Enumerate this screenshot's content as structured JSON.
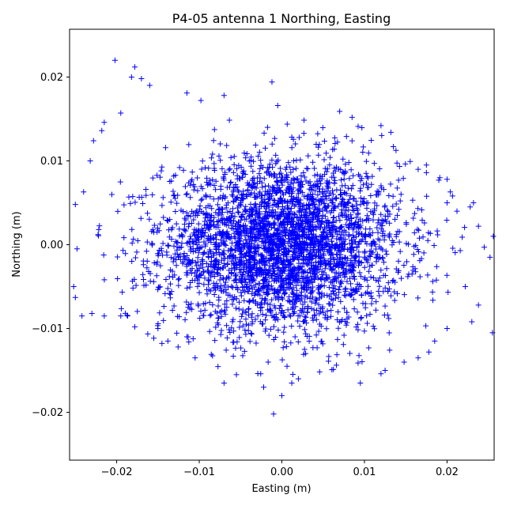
{
  "chart_data": {
    "type": "scatter",
    "title": "P4-05 antenna 1 Northing, Easting",
    "xlabel": "Easting (m)",
    "ylabel": "Northing (m)",
    "xlim": [
      -0.0257,
      0.0257
    ],
    "ylim": [
      -0.0257,
      0.0257
    ],
    "xticks": [
      -0.02,
      -0.01,
      0.0,
      0.01,
      0.02
    ],
    "yticks": [
      -0.02,
      -0.01,
      0.0,
      0.01,
      0.02
    ],
    "xtick_labels": [
      "−0.02",
      "−0.01",
      "0.00",
      "0.01",
      "0.02"
    ],
    "ytick_labels": [
      "−0.02",
      "−0.01",
      "0.00",
      "0.01",
      "0.02"
    ],
    "marker": "+",
    "color": "#0000ff",
    "grid": false,
    "series": [
      {
        "points": [
          [
            -0.0202,
            0.022
          ],
          [
            -0.0178,
            0.0212
          ],
          [
            -0.0182,
            0.02
          ],
          [
            -0.017,
            0.0198
          ],
          [
            -0.016,
            0.019
          ],
          [
            -0.0012,
            0.0194
          ],
          [
            -0.0098,
            0.0172
          ],
          [
            -0.0115,
            0.0181
          ],
          [
            -0.007,
            0.0178
          ],
          [
            -0.0005,
            0.0166
          ],
          [
            -0.0195,
            0.0157
          ],
          [
            -0.0215,
            0.0146
          ],
          [
            -0.0218,
            0.0136
          ],
          [
            -0.0228,
            0.0124
          ],
          [
            -0.0232,
            0.01
          ],
          [
            0.007,
            0.0159
          ],
          [
            0.0085,
            0.0152
          ],
          [
            0.012,
            0.0142
          ],
          [
            0.0132,
            0.0134
          ],
          [
            0.0135,
            0.0117
          ],
          [
            0.0165,
            0.009
          ],
          [
            0.0175,
            0.0086
          ],
          [
            0.019,
            0.0077
          ],
          [
            0.02,
            0.005
          ],
          [
            0.0212,
            0.004
          ],
          [
            0.0228,
            0.0045
          ],
          [
            0.0232,
            0.005
          ],
          [
            0.0238,
            0.0022
          ],
          [
            0.0245,
            -0.0003
          ],
          [
            0.0252,
            -0.0015
          ],
          [
            0.0256,
            0.001
          ],
          [
            0.0238,
            -0.0072
          ],
          [
            0.023,
            -0.0092
          ],
          [
            0.0255,
            -0.0105
          ],
          [
            0.0222,
            -0.005
          ],
          [
            -0.024,
            0.0063
          ],
          [
            -0.025,
            0.0048
          ],
          [
            -0.0248,
            -0.0005
          ],
          [
            -0.0252,
            -0.005
          ],
          [
            -0.0242,
            -0.0085
          ],
          [
            -0.023,
            -0.0082
          ],
          [
            -0.0215,
            -0.0085
          ],
          [
            -0.025,
            -0.0063
          ],
          [
            -0.0195,
            -0.0085
          ],
          [
            -0.0178,
            -0.0098
          ],
          [
            -0.001,
            -0.0202
          ],
          [
            0.0,
            -0.018
          ],
          [
            -0.0022,
            -0.017
          ],
          [
            0.0012,
            -0.0165
          ],
          [
            0.002,
            -0.016
          ],
          [
            -0.007,
            -0.0165
          ],
          [
            -0.0055,
            -0.0155
          ],
          [
            0.0095,
            -0.0165
          ],
          [
            0.012,
            -0.0154
          ],
          [
            0.0125,
            -0.015
          ],
          [
            0.0165,
            -0.0135
          ],
          [
            0.0178,
            -0.0128
          ],
          [
            0.0185,
            -0.0115
          ],
          [
            0.02,
            -0.01
          ],
          [
            -0.0105,
            -0.0135
          ],
          [
            -0.0138,
            -0.0115
          ],
          [
            -0.015,
            -0.01
          ],
          [
            0.0148,
            -0.014
          ],
          [
            0.02,
            0.0078
          ],
          [
            0.0175,
            0.0095
          ]
        ]
      }
    ],
    "cloud": {
      "count": 3500,
      "center": [
        0.0,
        0.0
      ],
      "spread": [
        0.0072,
        0.005
      ],
      "marker_size": 7
    }
  }
}
